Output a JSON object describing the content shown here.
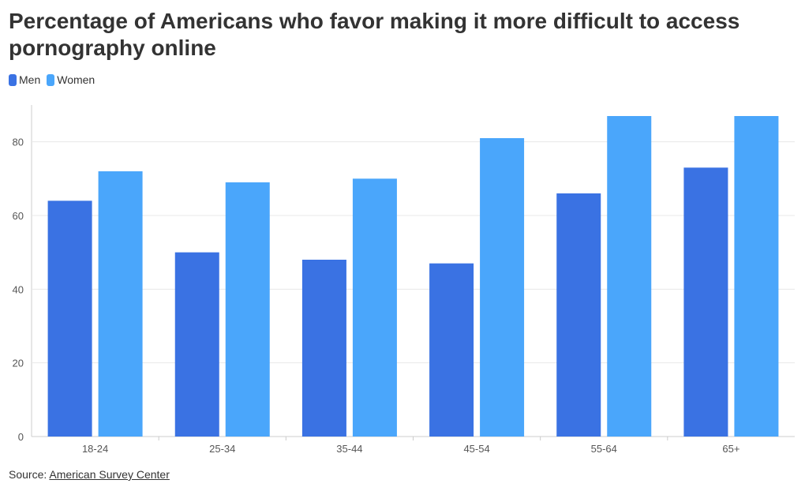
{
  "title": "Percentage of Americans who favor making it more difficult to access pornography online",
  "source": {
    "prefix": "Source: ",
    "link_text": "American Survey Center"
  },
  "colors": {
    "men": "#3a72e3",
    "women": "#4aa6fb",
    "grid": "#e8e8e8",
    "axis": "#cccccc"
  },
  "chart_data": {
    "type": "bar",
    "categories": [
      "18-24",
      "25-34",
      "35-44",
      "45-54",
      "55-64",
      "65+"
    ],
    "series": [
      {
        "name": "Men",
        "values": [
          64,
          50,
          48,
          47,
          66,
          73
        ]
      },
      {
        "name": "Women",
        "values": [
          72,
          69,
          70,
          81,
          87,
          87
        ]
      }
    ],
    "yticks": [
      0,
      20,
      40,
      60,
      80
    ],
    "ylim": [
      0,
      90
    ],
    "legend": "top-left",
    "grid": true,
    "xlabel": "",
    "ylabel": ""
  }
}
